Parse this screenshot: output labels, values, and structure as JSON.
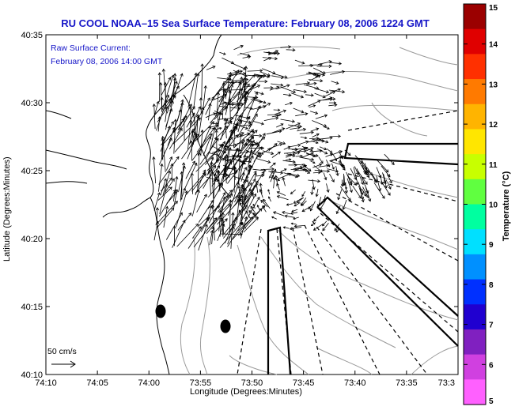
{
  "title": "RU COOL  NOAA–15  Sea Surface Temperature:  February 08, 2006 1224 GMT",
  "legend": {
    "line1": "Raw Surface Current:",
    "line2": "February 08, 2006 14:00 GMT"
  },
  "scale_label": "50 cm/s",
  "axes": {
    "xlabel": "Longitude (Degrees:Minutes)",
    "ylabel": "Latitude (Degrees:Minutes)",
    "x_ticks": [
      "74:10",
      "74:05",
      "74:00",
      "73:55",
      "73:50",
      "73:45",
      "73:40",
      "73:35",
      "73:3"
    ],
    "y_ticks": [
      "40:35",
      "40:30",
      "40:25",
      "40:20",
      "40:15",
      "40:10"
    ]
  },
  "colorbar": {
    "title": "Temperature (°C)",
    "ticks": [
      "15",
      "14",
      "13",
      "12",
      "11",
      "10",
      "9",
      "8",
      "7",
      "6",
      "5"
    ],
    "colors": [
      "#9b0000",
      "#e00000",
      "#ff3000",
      "#ff7a00",
      "#ffb400",
      "#ffe600",
      "#c8ff00",
      "#60ff40",
      "#00ffa0",
      "#00e0ff",
      "#0090ff",
      "#0030ff",
      "#2000d0",
      "#8020c0",
      "#d040e0",
      "#ff60ff"
    ]
  },
  "colors": {
    "title": "#1515c8",
    "line": "#000000",
    "contour": "#9a9a9a"
  }
}
